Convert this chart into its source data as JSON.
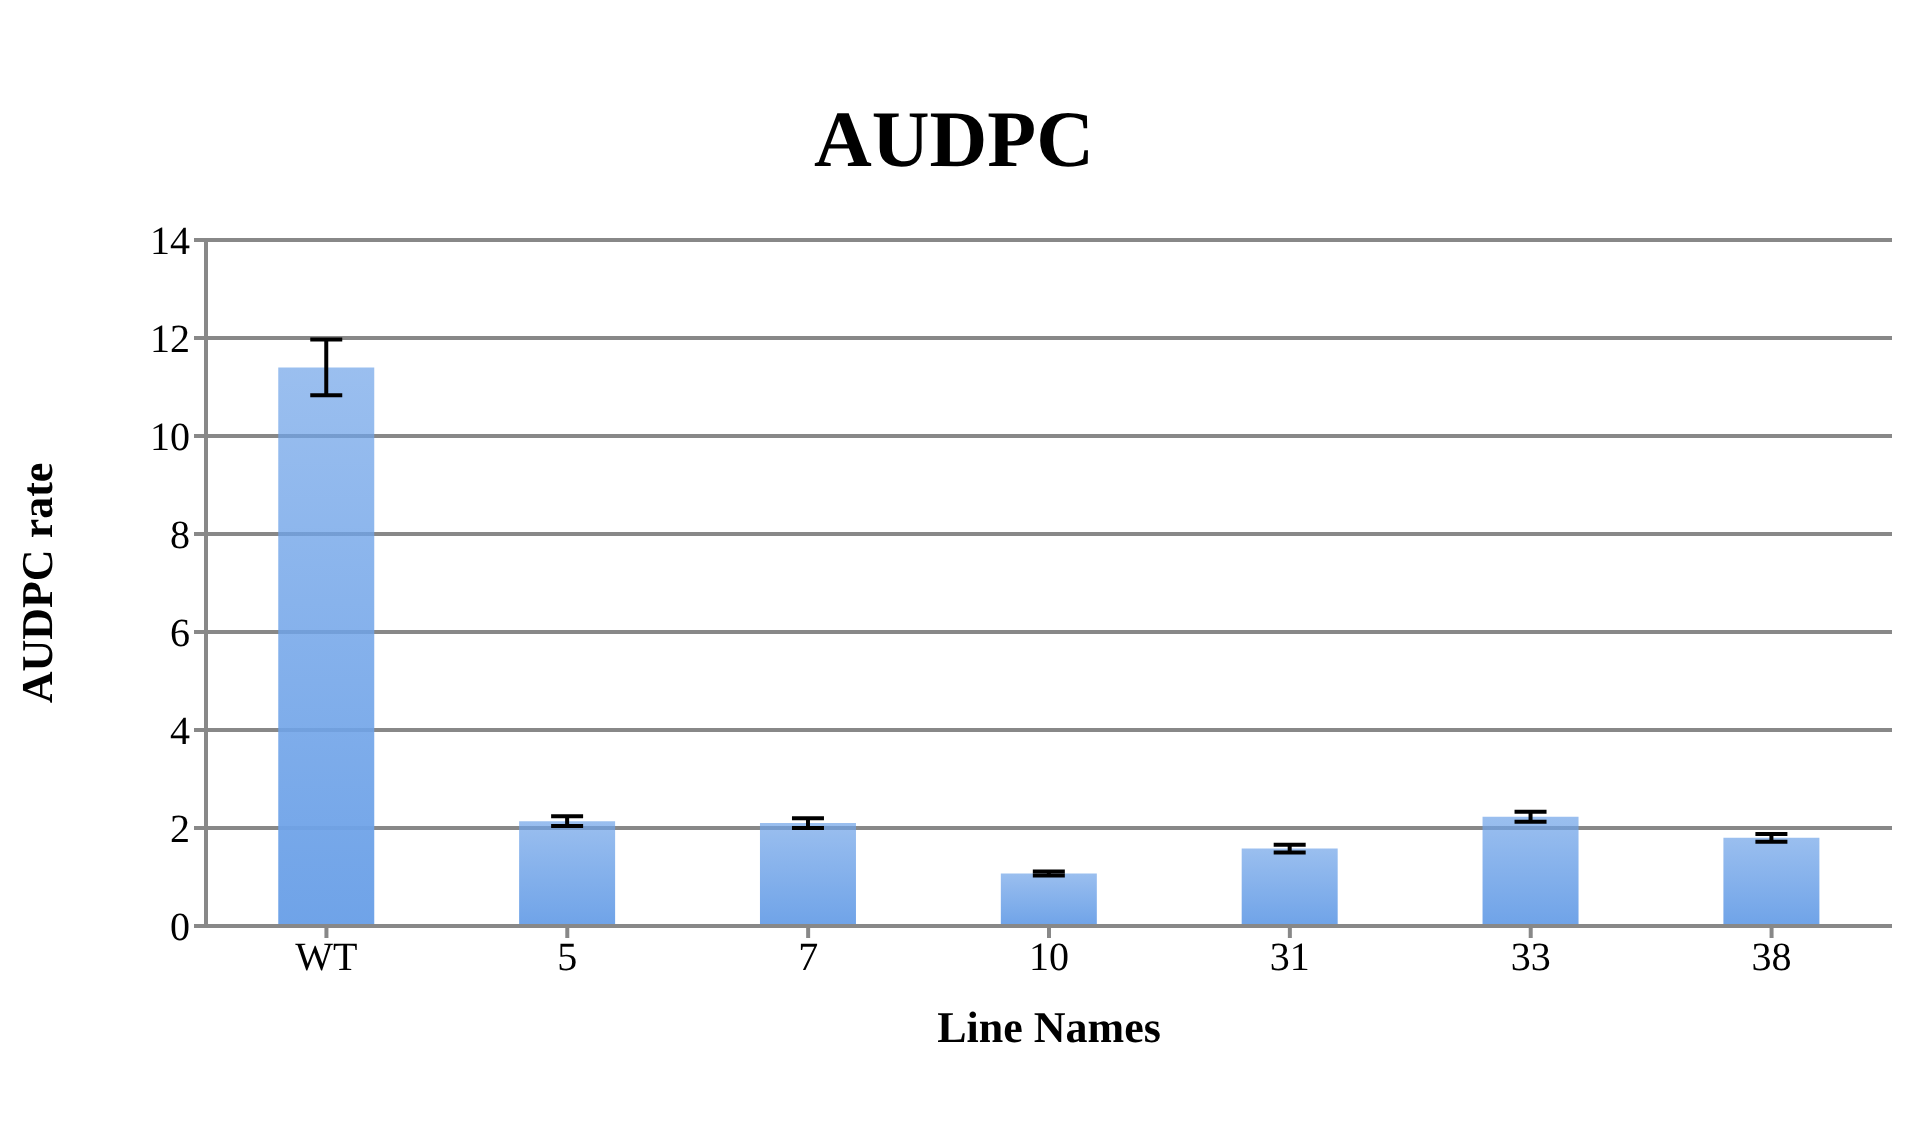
{
  "chart_data": {
    "type": "bar",
    "title": "AUDPC",
    "xlabel": "Line Names",
    "ylabel": "AUDPC rate",
    "categories": [
      "WT",
      "5",
      "7",
      "10",
      "31",
      "33",
      "38"
    ],
    "values": [
      11.4,
      2.14,
      2.1,
      1.07,
      1.58,
      2.23,
      1.8
    ],
    "errors": [
      0.57,
      0.1,
      0.1,
      0.04,
      0.08,
      0.1,
      0.08
    ],
    "color": "#6fa3e8",
    "ylim": [
      0,
      14
    ],
    "yticks": [
      0,
      2,
      4,
      6,
      8,
      10,
      12,
      14
    ],
    "grid": "y"
  }
}
